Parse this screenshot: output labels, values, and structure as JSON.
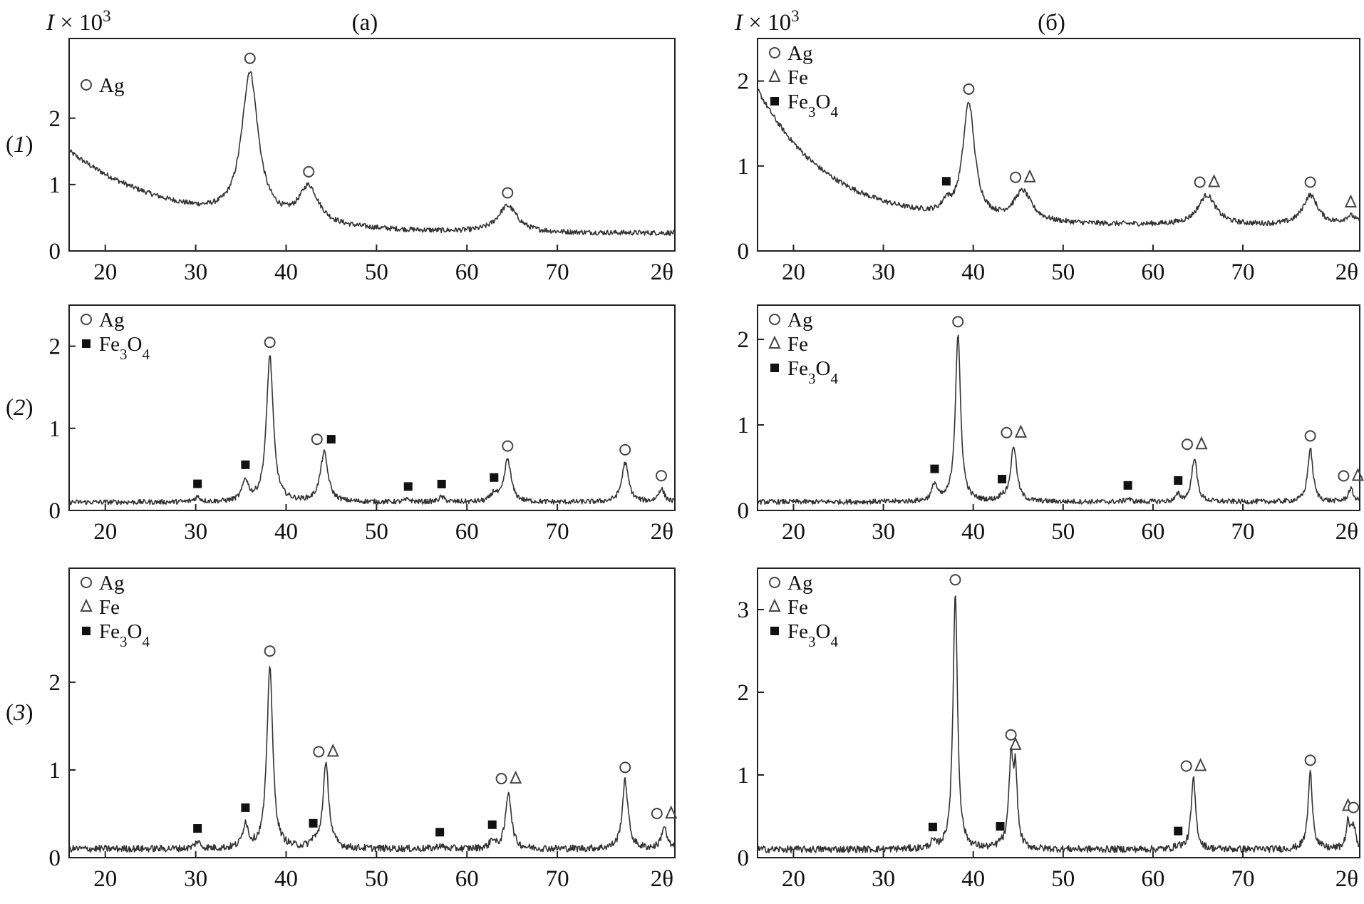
{
  "figure": {
    "ylabel_prefix": "I",
    "ylabel_rest": " × 10",
    "ylabel_exp": "3",
    "xlabel": "2θ",
    "row_labels": [
      "1",
      "2",
      "3"
    ]
  },
  "markers": {
    "Ag": "circle",
    "Fe": "triangle",
    "Fe3O4": "square",
    "Fe3O4_base": "Fe",
    "Fe3O4_sub1": "3",
    "Fe3O4_mid": "O",
    "Fe3O4_sub2": "4"
  },
  "chart_data": [
    {
      "id": "a1",
      "type": "line",
      "column_title": "(a)",
      "row": 1,
      "xlim": [
        16,
        83
      ],
      "ylim": [
        0,
        3.2
      ],
      "xticks": [
        20,
        30,
        40,
        50,
        60,
        70
      ],
      "yticks": [
        0,
        1,
        2
      ],
      "legend": [
        "Ag"
      ],
      "background": {
        "start": 1.5,
        "min": 0.25,
        "decay": 12,
        "rise_end": 0.3,
        "rise_start": 55
      },
      "peaks": [
        {
          "x": 36.0,
          "h": 2.2,
          "w": 1.1,
          "marker": [
            "Ag"
          ]
        },
        {
          "x": 42.5,
          "h": 0.55,
          "w": 1.3,
          "marker": [
            "Ag"
          ]
        },
        {
          "x": 64.5,
          "h": 0.4,
          "w": 1.3,
          "marker": [
            "Ag"
          ]
        }
      ]
    },
    {
      "id": "b1",
      "type": "line",
      "column_title": "(б)",
      "row": 1,
      "xlim": [
        16,
        83
      ],
      "ylim": [
        0,
        2.5
      ],
      "xticks": [
        20,
        30,
        40,
        50,
        60,
        70
      ],
      "yticks": [
        0,
        1,
        2
      ],
      "legend": [
        "Ag",
        "Fe",
        "Fe3O4"
      ],
      "background": {
        "start": 1.9,
        "min": 0.3,
        "decay": 8,
        "rise_end": 0.3,
        "rise_start": 60
      },
      "peaks": [
        {
          "x": 37.0,
          "h": 0.12,
          "w": 0.5,
          "marker": [
            "Fe3O4"
          ]
        },
        {
          "x": 39.5,
          "h": 1.35,
          "w": 0.8,
          "marker": [
            "Ag"
          ]
        },
        {
          "x": 45.5,
          "h": 0.35,
          "w": 1.2,
          "marker": [
            "Ag",
            "Fe"
          ]
        },
        {
          "x": 66.0,
          "h": 0.35,
          "w": 1.2,
          "marker": [
            "Ag",
            "Fe"
          ]
        },
        {
          "x": 77.5,
          "h": 0.35,
          "w": 1.0,
          "marker": [
            "Ag"
          ]
        },
        {
          "x": 82.0,
          "h": 0.1,
          "w": 0.8,
          "marker": [
            "Fe"
          ]
        }
      ]
    },
    {
      "id": "a2",
      "type": "line",
      "column_title": "",
      "row": 2,
      "xlim": [
        16,
        83
      ],
      "ylim": [
        0,
        2.5
      ],
      "xticks": [
        20,
        30,
        40,
        50,
        60,
        70
      ],
      "yticks": [
        0,
        1,
        2
      ],
      "legend": [
        "Ag",
        "Fe3O4"
      ],
      "background": {
        "start": 0.1,
        "min": 0.1,
        "decay": 1,
        "rise_end": 0.1,
        "rise_start": 80
      },
      "peaks": [
        {
          "x": 30.2,
          "h": 0.06,
          "w": 0.4,
          "marker": [
            "Fe3O4"
          ]
        },
        {
          "x": 35.5,
          "h": 0.25,
          "w": 0.4,
          "marker": [
            "Fe3O4"
          ]
        },
        {
          "x": 38.2,
          "h": 1.78,
          "w": 0.45,
          "marker": [
            "Ag"
          ]
        },
        {
          "x": 44.2,
          "h": 0.6,
          "w": 0.5,
          "marker": [
            "Ag",
            "Fe3O4"
          ]
        },
        {
          "x": 53.5,
          "h": 0.03,
          "w": 0.4,
          "marker": [
            "Fe3O4"
          ]
        },
        {
          "x": 57.2,
          "h": 0.06,
          "w": 0.4,
          "marker": [
            "Fe3O4"
          ]
        },
        {
          "x": 63.0,
          "h": 0.1,
          "w": 0.4,
          "marker": [
            "Fe3O4"
          ]
        },
        {
          "x": 64.5,
          "h": 0.52,
          "w": 0.45,
          "marker": [
            "Ag"
          ]
        },
        {
          "x": 77.5,
          "h": 0.48,
          "w": 0.45,
          "marker": [
            "Ag"
          ]
        },
        {
          "x": 81.5,
          "h": 0.16,
          "w": 0.4,
          "marker": [
            "Ag"
          ]
        }
      ]
    },
    {
      "id": "b2",
      "type": "line",
      "column_title": "",
      "row": 2,
      "xlim": [
        16,
        83
      ],
      "ylim": [
        0,
        2.4
      ],
      "xticks": [
        20,
        30,
        40,
        50,
        60,
        70
      ],
      "yticks": [
        0,
        1,
        2
      ],
      "legend": [
        "Ag",
        "Fe",
        "Fe3O4"
      ],
      "background": {
        "start": 0.1,
        "min": 0.1,
        "decay": 1,
        "rise_end": 0.1,
        "rise_start": 80
      },
      "peaks": [
        {
          "x": 35.7,
          "h": 0.2,
          "w": 0.35,
          "marker": [
            "Fe3O4"
          ]
        },
        {
          "x": 38.3,
          "h": 1.95,
          "w": 0.35,
          "marker": [
            "Ag"
          ]
        },
        {
          "x": 43.2,
          "h": 0.05,
          "w": 0.3,
          "marker": [
            "Fe3O4"
          ]
        },
        {
          "x": 44.5,
          "h": 0.65,
          "w": 0.4,
          "marker": [
            "Ag",
            "Fe"
          ]
        },
        {
          "x": 57.2,
          "h": 0.04,
          "w": 0.3,
          "marker": [
            "Fe3O4"
          ]
        },
        {
          "x": 62.8,
          "h": 0.08,
          "w": 0.3,
          "marker": [
            "Fe3O4"
          ]
        },
        {
          "x": 64.6,
          "h": 0.52,
          "w": 0.35,
          "marker": [
            "Ag",
            "Fe"
          ]
        },
        {
          "x": 77.5,
          "h": 0.62,
          "w": 0.35,
          "marker": [
            "Ag"
          ]
        },
        {
          "x": 82.0,
          "h": 0.15,
          "w": 0.35,
          "marker": [
            "Ag",
            "Fe"
          ]
        }
      ]
    },
    {
      "id": "a3",
      "type": "line",
      "column_title": "",
      "row": 3,
      "xlim": [
        16,
        83
      ],
      "ylim": [
        0,
        3.3
      ],
      "xticks": [
        20,
        30,
        40,
        50,
        60,
        70
      ],
      "yticks": [
        0,
        1,
        2
      ],
      "legend": [
        "Ag",
        "Fe",
        "Fe3O4"
      ],
      "background": {
        "start": 0.1,
        "min": 0.1,
        "decay": 1,
        "rise_end": 0.1,
        "rise_start": 80
      },
      "peaks": [
        {
          "x": 30.2,
          "h": 0.08,
          "w": 0.35,
          "marker": [
            "Fe3O4"
          ]
        },
        {
          "x": 35.5,
          "h": 0.28,
          "w": 0.35,
          "marker": [
            "Fe3O4"
          ]
        },
        {
          "x": 38.2,
          "h": 2.1,
          "w": 0.38,
          "marker": [
            "Ag"
          ]
        },
        {
          "x": 43.0,
          "h": 0.06,
          "w": 0.3,
          "marker": [
            "Fe3O4"
          ]
        },
        {
          "x": 44.4,
          "h": 0.95,
          "w": 0.4,
          "marker": [
            "Ag",
            "Fe"
          ]
        },
        {
          "x": 57.0,
          "h": 0.04,
          "w": 0.3,
          "marker": [
            "Fe3O4"
          ]
        },
        {
          "x": 62.8,
          "h": 0.1,
          "w": 0.3,
          "marker": [
            "Fe3O4"
          ]
        },
        {
          "x": 64.6,
          "h": 0.65,
          "w": 0.38,
          "marker": [
            "Ag",
            "Fe"
          ]
        },
        {
          "x": 77.5,
          "h": 0.78,
          "w": 0.38,
          "marker": [
            "Ag"
          ]
        },
        {
          "x": 81.8,
          "h": 0.25,
          "w": 0.35,
          "marker": [
            "Ag",
            "Fe"
          ]
        }
      ]
    },
    {
      "id": "b3",
      "type": "line",
      "column_title": "",
      "row": 3,
      "xlim": [
        16,
        83
      ],
      "ylim": [
        0,
        3.5
      ],
      "xticks": [
        20,
        30,
        40,
        50,
        60,
        70
      ],
      "yticks": [
        0,
        1,
        2,
        3
      ],
      "legend": [
        "Ag",
        "Fe",
        "Fe3O4"
      ],
      "background": {
        "start": 0.1,
        "min": 0.1,
        "decay": 1,
        "rise_end": 0.1,
        "rise_start": 80
      },
      "peaks": [
        {
          "x": 35.5,
          "h": 0.07,
          "w": 0.3,
          "marker": [
            "Fe3O4"
          ]
        },
        {
          "x": 38.0,
          "h": 3.1,
          "w": 0.3,
          "marker": [
            "Ag"
          ]
        },
        {
          "x": 43.0,
          "h": 0.04,
          "w": 0.3,
          "marker": [
            "Fe3O4"
          ]
        },
        {
          "x": 44.2,
          "h": 1.05,
          "w": 0.28,
          "marker": [
            "Ag"
          ]
        },
        {
          "x": 44.7,
          "h": 0.85,
          "w": 0.25,
          "marker": [
            "Fe"
          ]
        },
        {
          "x": 62.8,
          "h": 0.04,
          "w": 0.3,
          "marker": [
            "Fe3O4"
          ]
        },
        {
          "x": 64.5,
          "h": 0.85,
          "w": 0.3,
          "marker": [
            "Ag",
            "Fe"
          ]
        },
        {
          "x": 77.5,
          "h": 0.92,
          "w": 0.3,
          "marker": [
            "Ag"
          ]
        },
        {
          "x": 81.7,
          "h": 0.32,
          "w": 0.25,
          "marker": [
            "Fe"
          ]
        },
        {
          "x": 82.3,
          "h": 0.3,
          "w": 0.25,
          "marker": [
            "Ag"
          ]
        }
      ]
    }
  ]
}
